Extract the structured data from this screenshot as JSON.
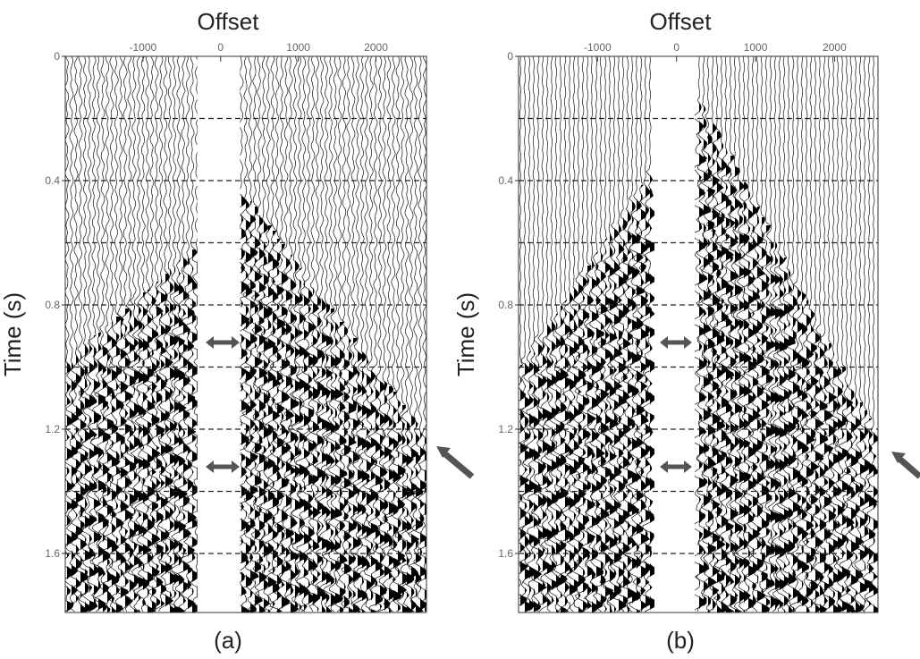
{
  "chart_data": [
    {
      "type": "seismic",
      "title": "Offset",
      "y_label": "Time (s)",
      "caption": "(a)",
      "xlim": [
        -2000,
        2650
      ],
      "xticks": [
        -1000,
        0,
        1000,
        2000
      ],
      "ylim": [
        0,
        1.79
      ],
      "yticks": [
        0,
        0.4,
        0.8,
        1.2,
        1.6
      ],
      "y_inverted": true,
      "grid_lines": [
        0.2,
        0.4,
        0.6,
        0.8,
        1.0,
        1.2,
        1.4,
        1.6
      ],
      "gap": [
        -300,
        250
      ]
    },
    {
      "type": "seismic",
      "title": "Offset",
      "y_label": "Time (s)",
      "caption": "(b)",
      "xlim": [
        -2000,
        2550
      ],
      "xticks": [
        -1000,
        0,
        1000,
        2000
      ],
      "ylim": [
        0,
        1.79
      ],
      "yticks": [
        0,
        0.4,
        0.8,
        1.2,
        1.6
      ],
      "y_inverted": true,
      "grid_lines": [
        0.2,
        0.4,
        0.6,
        0.8,
        1.0,
        1.2,
        1.4,
        1.6
      ],
      "gap": [
        -280,
        230
      ]
    }
  ]
}
